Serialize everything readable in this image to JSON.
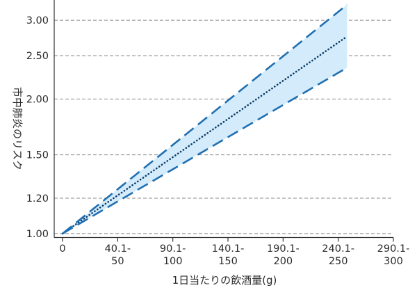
{
  "chart_data": {
    "type": "line",
    "title": "",
    "xlabel": "1日当たりの飲酒量(g)",
    "ylabel": "市中肺炎のリスク",
    "y_scale": "log",
    "grid": "horizontal dashed",
    "legend": "none",
    "x_ticks": [
      {
        "x": 0,
        "label": [
          "0"
        ]
      },
      {
        "x": 50,
        "label": [
          "40.1-",
          "50"
        ]
      },
      {
        "x": 100,
        "label": [
          "90.1-",
          "100"
        ]
      },
      {
        "x": 150,
        "label": [
          "140.1-",
          "150"
        ]
      },
      {
        "x": 200,
        "label": [
          "190.1-",
          "200"
        ]
      },
      {
        "x": 250,
        "label": [
          "240.1-",
          "250"
        ]
      },
      {
        "x": 300,
        "label": [
          "290.1-",
          "300"
        ]
      }
    ],
    "y_ticks": [
      1.0,
      1.2,
      1.5,
      2.0,
      2.5,
      3.0
    ],
    "y_tick_labels": [
      "1.00",
      "1.20",
      "1.50",
      "2.00",
      "2.50",
      "3.00"
    ],
    "xlim": [
      0,
      300
    ],
    "ylim": [
      0.98,
      3.33
    ],
    "series": [
      {
        "role": "estimate",
        "style": "dotted",
        "color": "#0b3a66",
        "x": [
          0,
          258
        ],
        "y": [
          1.0,
          2.76
        ]
      },
      {
        "role": "upper-ci",
        "style": "dashed",
        "color": "#1f6fb2",
        "x": [
          0,
          258
        ],
        "y": [
          1.0,
          3.25
        ]
      },
      {
        "role": "lower-ci",
        "style": "dashed",
        "color": "#1f6fb2",
        "x": [
          0,
          258
        ],
        "y": [
          1.0,
          2.35
        ]
      }
    ],
    "band_fill": "#d3ebfa"
  }
}
